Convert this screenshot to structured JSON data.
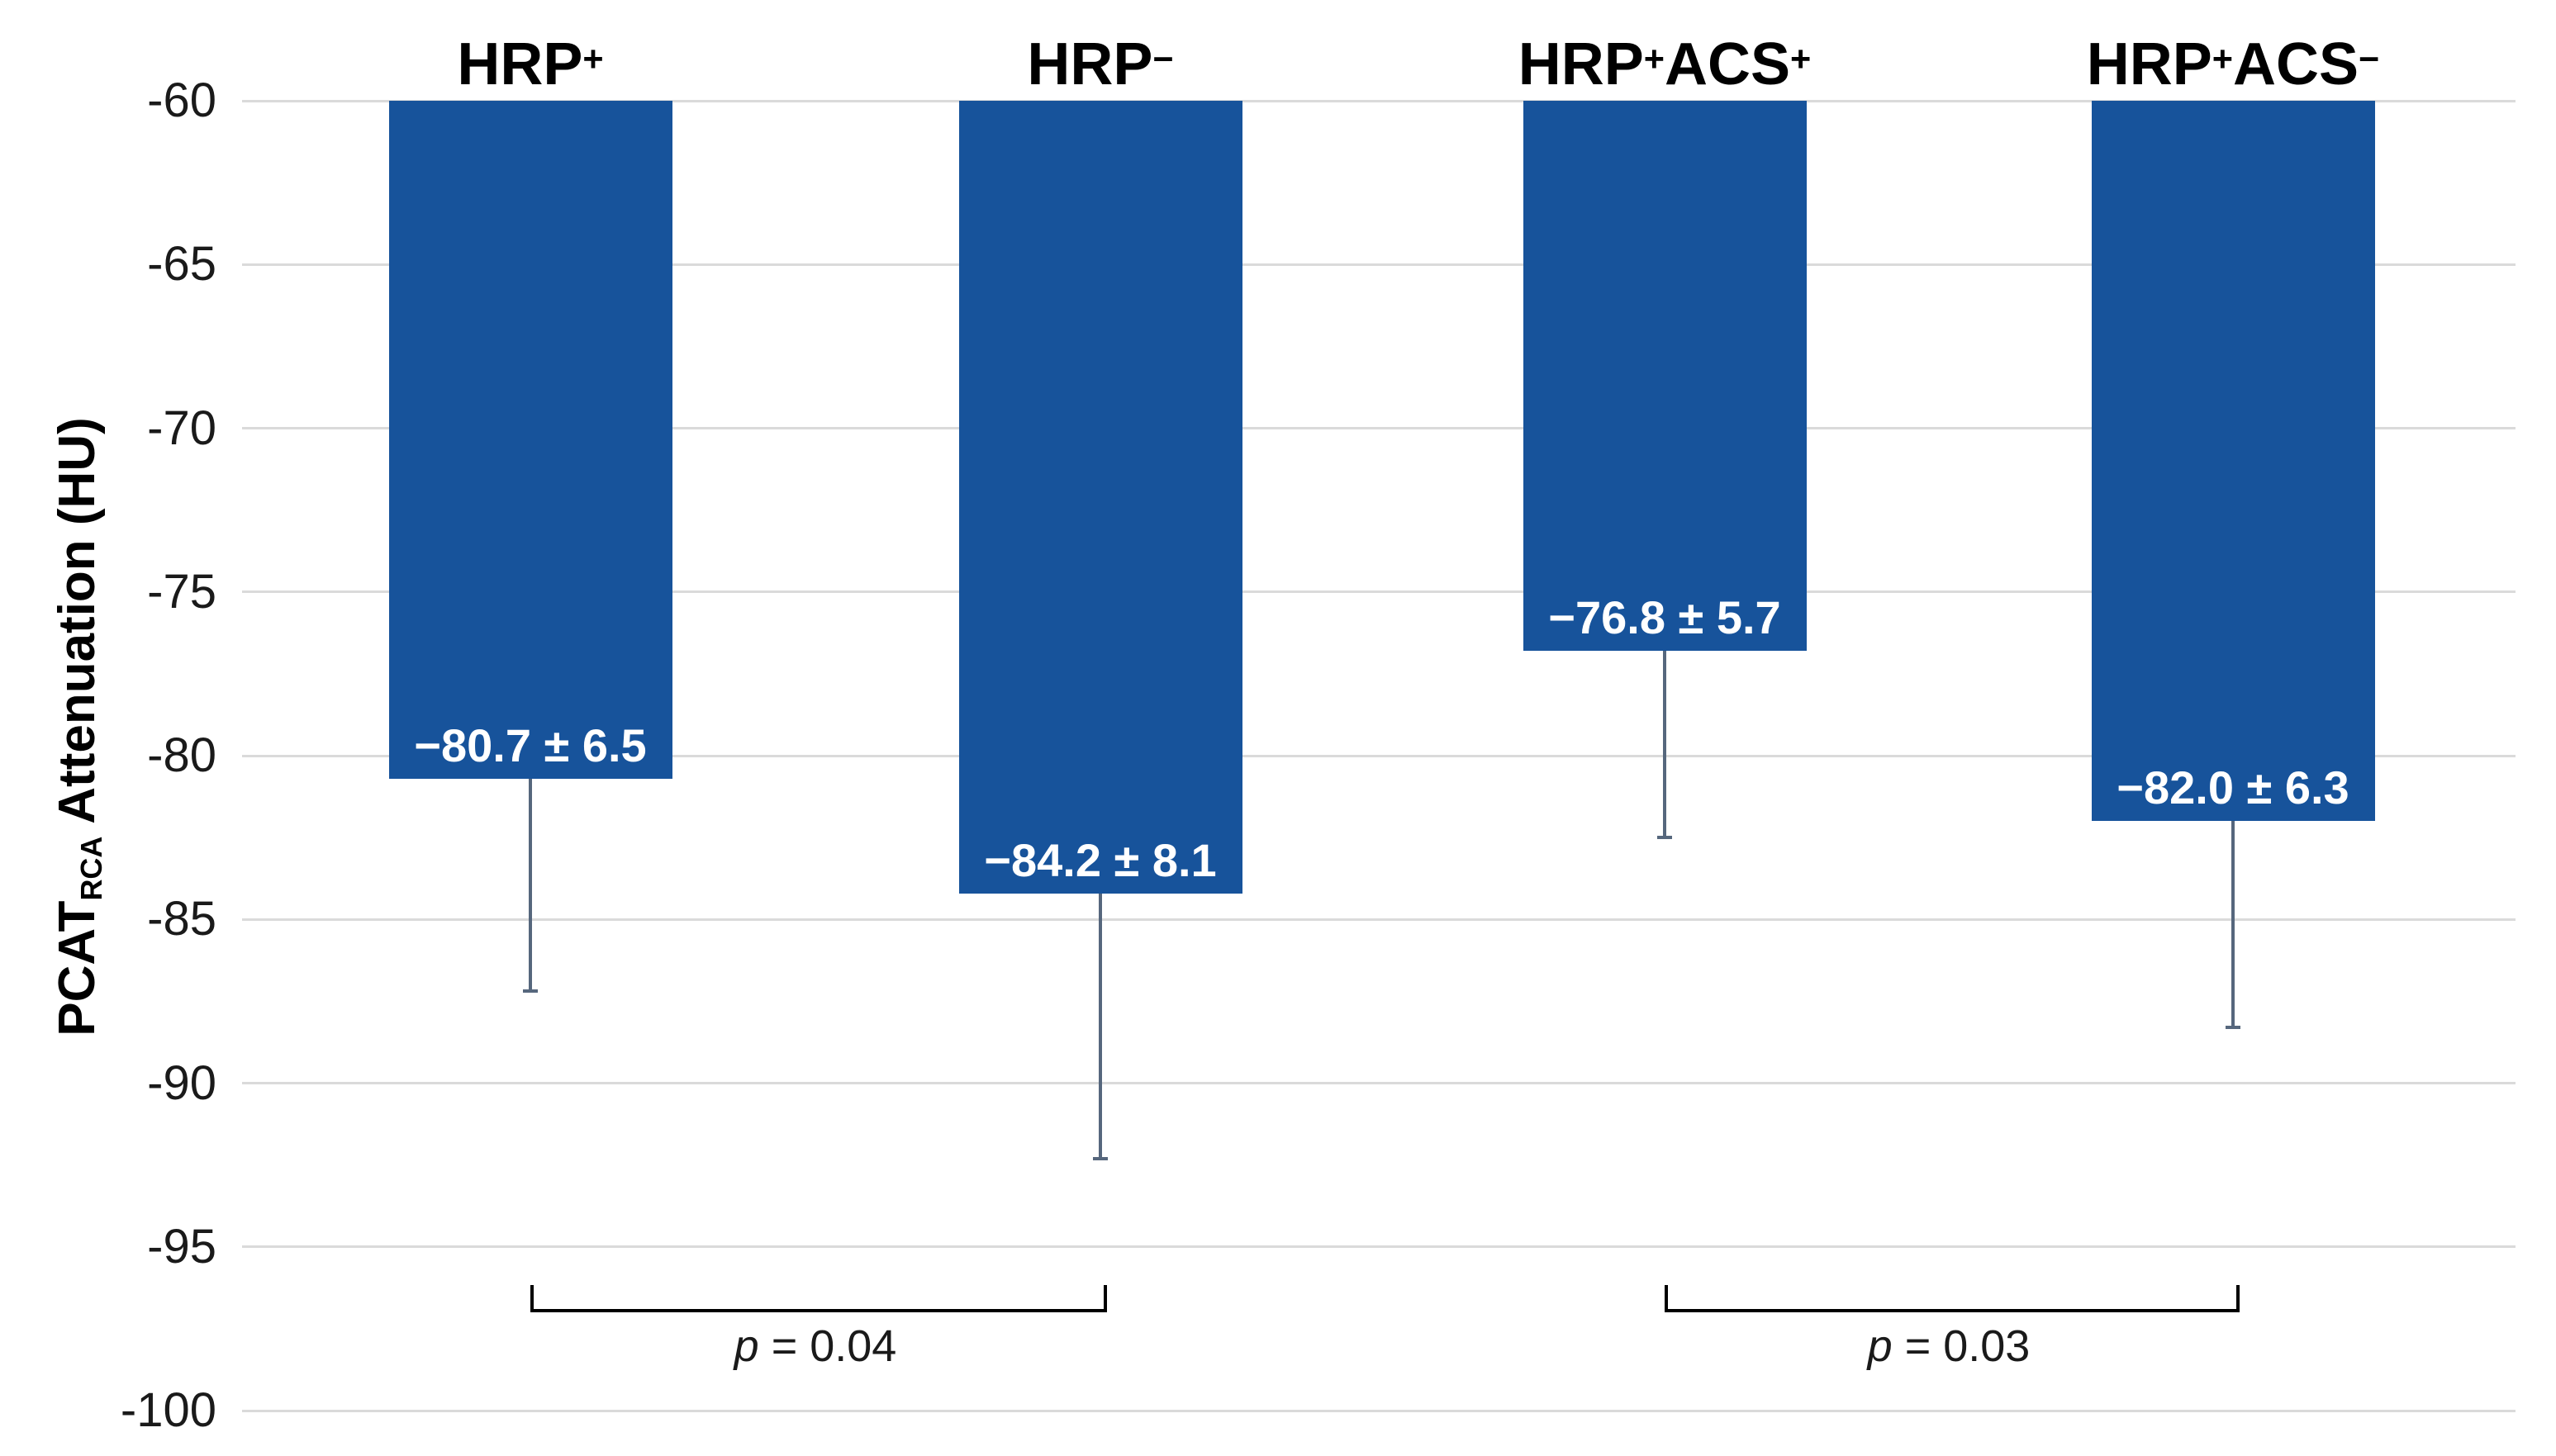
{
  "figure": {
    "y_axis_title": {
      "prefix": "PCAT",
      "subscript": "RCA",
      "suffix": " Attenuation (HU)"
    }
  },
  "chart_data": {
    "type": "bar",
    "title": "",
    "ylabel": "PCAT RCA Attenuation (HU)",
    "ylim": [
      -100,
      -60
    ],
    "grid": true,
    "legend_position": "none",
    "y_ticks": [
      {
        "value": -60,
        "label": "-60"
      },
      {
        "value": -65,
        "label": "-65"
      },
      {
        "value": -70,
        "label": "-70"
      },
      {
        "value": -75,
        "label": "-75"
      },
      {
        "value": -80,
        "label": "-80"
      },
      {
        "value": -85,
        "label": "-85"
      },
      {
        "value": -90,
        "label": "-90"
      },
      {
        "value": -95,
        "label": "-95"
      },
      {
        "value": -100,
        "label": "-100"
      }
    ],
    "categories": [
      {
        "name": "HRP+",
        "segments": [
          {
            "text": "HRP",
            "sup": "+"
          }
        ]
      },
      {
        "name": "HRP-",
        "segments": [
          {
            "text": "HRP",
            "sup": "−"
          }
        ]
      },
      {
        "name": "HRP+ACS+",
        "segments": [
          {
            "text": "HRP",
            "sup": "+"
          },
          {
            "text": "ACS",
            "sup": "+"
          }
        ]
      },
      {
        "name": "HRP+ACS-",
        "segments": [
          {
            "text": "HRP",
            "sup": "+"
          },
          {
            "text": "ACS",
            "sup": "−"
          }
        ]
      }
    ],
    "series": [
      {
        "name": "PCAT RCA attenuation",
        "values": [
          -80.7,
          -84.2,
          -76.8,
          -82.0
        ],
        "sd": [
          6.5,
          8.1,
          5.7,
          6.3
        ],
        "bar_labels": [
          "−80.7 ± 6.5",
          "−84.2 ± 8.1",
          "−76.8 ± 5.7",
          "−82.0 ± 6.3"
        ]
      }
    ],
    "annotations": [
      {
        "type": "significance-bracket",
        "between": [
          0,
          1
        ],
        "p_symbol": "p",
        "p_text": " = 0.04",
        "label": "p = 0.04"
      },
      {
        "type": "significance-bracket",
        "between": [
          2,
          3
        ],
        "p_symbol": "p",
        "p_text": " = 0.03",
        "label": "p = 0.03"
      }
    ],
    "colors": {
      "bar": "#17539B",
      "error_bar": "#56677D",
      "gridline": "#DADADA",
      "bracket": "#000000",
      "bar_label_text": "#FFFFFF",
      "axis_text": "#1A1A1A"
    }
  }
}
